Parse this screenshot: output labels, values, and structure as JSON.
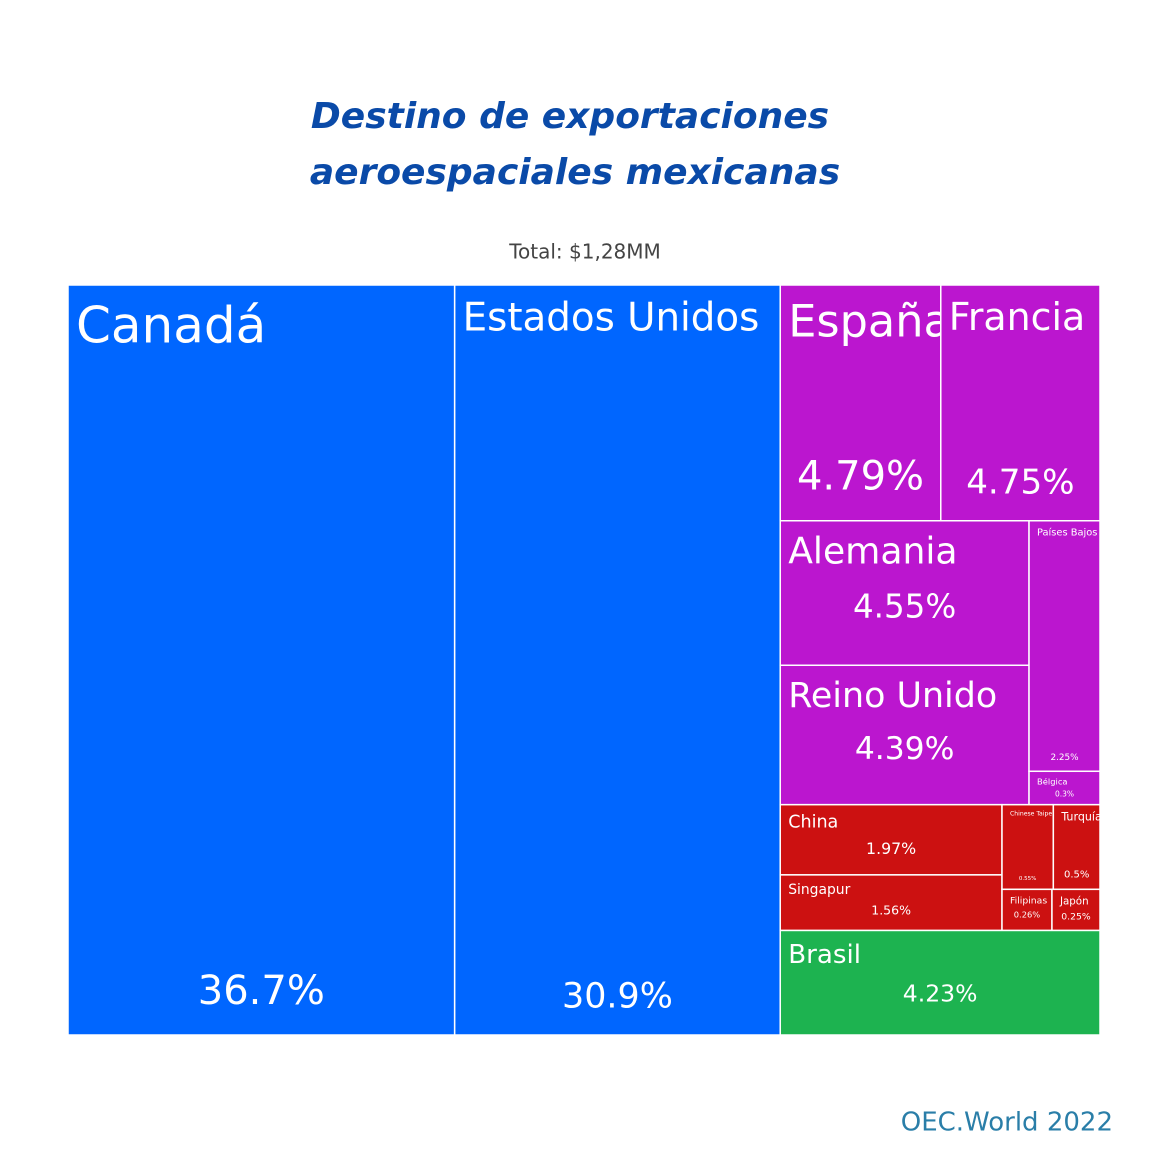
{
  "chart_data": {
    "type": "treemap",
    "title": "Destino de exportaciones aeroespaciales mexicanas",
    "subtitle": "Total: $1,28MM",
    "source": "OEC.World 2022",
    "categories": [
      "Canadá",
      "Estados Unidos",
      "España",
      "Francia",
      "Alemania",
      "Reino Unido",
      "Países Bajos",
      "Bélgica",
      "China",
      "Singapur",
      "Chinese Taipei",
      "Turquía",
      "Filipinas",
      "Japón",
      "Brasil"
    ],
    "values": [
      36.7,
      30.9,
      4.79,
      4.75,
      4.55,
      4.39,
      2.25,
      0.3,
      1.97,
      1.56,
      0.55,
      0.5,
      0.26,
      0.25,
      4.23
    ],
    "value_labels": [
      "36.7%",
      "30.9%",
      "4.79%",
      "4.75%",
      "4.55%",
      "4.39%",
      "2.25%",
      "0.3%",
      "1.97%",
      "1.56%",
      "0.55%",
      "0.5%",
      "0.26%",
      "0.25%",
      "4.23%"
    ],
    "colors": [
      "#0066ff",
      "#0066ff",
      "#bb16cf",
      "#bb16cf",
      "#bb16cf",
      "#bb16cf",
      "#bb16cf",
      "#bb16cf",
      "#cc1111",
      "#cc1111",
      "#cc1111",
      "#cc1111",
      "#cc1111",
      "#cc1111",
      "#1db350"
    ]
  }
}
